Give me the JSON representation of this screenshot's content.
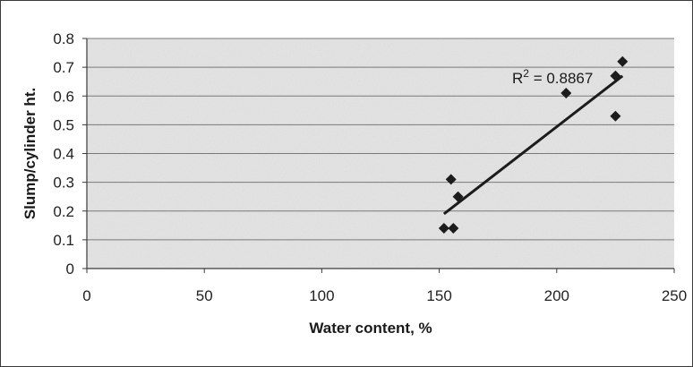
{
  "chart_data": {
    "type": "scatter",
    "title": "",
    "xlabel": "Water content, %",
    "ylabel": "Slump/cylinder ht.",
    "xlim": [
      0,
      250
    ],
    "ylim": [
      0,
      0.8
    ],
    "xticks": [
      0,
      50,
      100,
      150,
      200,
      250
    ],
    "yticks": [
      0,
      0.1,
      0.2,
      0.3,
      0.4,
      0.5,
      0.6,
      0.7,
      0.8
    ],
    "grid": "horizontal",
    "legend": "none",
    "series": [
      {
        "marker": "diamond",
        "points": [
          {
            "x": 152,
            "y": 0.14
          },
          {
            "x": 156,
            "y": 0.14
          },
          {
            "x": 155,
            "y": 0.31
          },
          {
            "x": 158,
            "y": 0.25
          },
          {
            "x": 204,
            "y": 0.61
          },
          {
            "x": 225,
            "y": 0.53
          },
          {
            "x": 225,
            "y": 0.67
          },
          {
            "x": 228,
            "y": 0.72
          }
        ]
      }
    ],
    "trendline": {
      "x": [
        152,
        228
      ],
      "y": [
        0.19,
        0.67
      ],
      "label_prefix": "R",
      "label_sup": "2",
      "label_value": " = 0.8867"
    }
  },
  "colors": {
    "plot_background": "#e4e4e4",
    "gridline": "#7a7a7a",
    "marker": "#1c1c1c",
    "trendline": "#1c1c1c",
    "frame": "#3a3a3a"
  }
}
